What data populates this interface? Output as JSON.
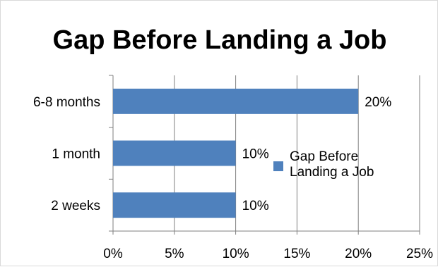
{
  "chart_data": {
    "type": "bar",
    "orientation": "horizontal",
    "title": "Gap Before Landing a Job",
    "categories": [
      "6-8 months",
      "1 month",
      "2 weeks"
    ],
    "series": [
      {
        "name": "Gap Before Landing a Job",
        "values": [
          0.2,
          0.1,
          0.1
        ]
      }
    ],
    "data_labels": [
      "20%",
      "10%",
      "10%"
    ],
    "x_ticks": [
      "0%",
      "5%",
      "10%",
      "15%",
      "20%",
      "25%"
    ],
    "xlim": [
      0,
      0.25
    ],
    "grid": "vertical",
    "legend_position": "right",
    "colors": {
      "bar": "#4f81bd",
      "grid": "#7f7f7f",
      "axis": "#7f7f7f"
    }
  }
}
